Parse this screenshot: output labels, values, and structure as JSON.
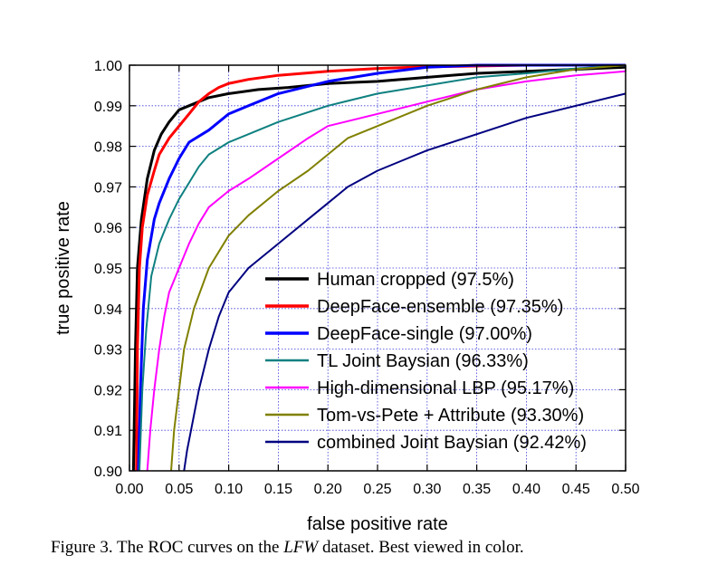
{
  "caption": {
    "prefix": "Figure 3.",
    "text_before": "The ROC curves on the",
    "dataset": "LFW",
    "text_after": "dataset. Best viewed in color."
  },
  "chart_data": {
    "type": "line",
    "title": "",
    "xlabel": "false positive rate",
    "ylabel": "true positive rate",
    "xlim": [
      0.0,
      0.5
    ],
    "ylim": [
      0.9,
      1.0
    ],
    "xticks": [
      "0.00",
      "0.05",
      "0.10",
      "0.15",
      "0.20",
      "0.25",
      "0.30",
      "0.35",
      "0.40",
      "0.45",
      "0.50"
    ],
    "yticks": [
      "0.90",
      "0.91",
      "0.92",
      "0.93",
      "0.94",
      "0.95",
      "0.96",
      "0.97",
      "0.98",
      "0.99",
      "1.00"
    ],
    "grid": true,
    "legend_position": "bottom-right",
    "series": [
      {
        "name": "Human cropped (97.5%)",
        "color": "#000000",
        "width": 3,
        "points": [
          [
            0.004,
            0.9
          ],
          [
            0.006,
            0.93
          ],
          [
            0.008,
            0.95
          ],
          [
            0.012,
            0.962
          ],
          [
            0.018,
            0.972
          ],
          [
            0.025,
            0.979
          ],
          [
            0.032,
            0.983
          ],
          [
            0.04,
            0.986
          ],
          [
            0.05,
            0.989
          ],
          [
            0.06,
            0.99
          ],
          [
            0.08,
            0.992
          ],
          [
            0.1,
            0.993
          ],
          [
            0.13,
            0.994
          ],
          [
            0.16,
            0.9945
          ],
          [
            0.2,
            0.9955
          ],
          [
            0.25,
            0.996
          ],
          [
            0.3,
            0.997
          ],
          [
            0.35,
            0.998
          ],
          [
            0.4,
            0.9985
          ],
          [
            0.45,
            0.999
          ],
          [
            0.5,
            0.9995
          ]
        ]
      },
      {
        "name": "DeepFace-ensemble (97.35%)",
        "color": "#ff0000",
        "width": 3,
        "points": [
          [
            0.007,
            0.9
          ],
          [
            0.008,
            0.93
          ],
          [
            0.01,
            0.95
          ],
          [
            0.013,
            0.96
          ],
          [
            0.018,
            0.968
          ],
          [
            0.025,
            0.974
          ],
          [
            0.03,
            0.978
          ],
          [
            0.04,
            0.982
          ],
          [
            0.05,
            0.985
          ],
          [
            0.06,
            0.988
          ],
          [
            0.07,
            0.991
          ],
          [
            0.08,
            0.993
          ],
          [
            0.09,
            0.9945
          ],
          [
            0.1,
            0.9955
          ],
          [
            0.12,
            0.9965
          ],
          [
            0.15,
            0.9975
          ],
          [
            0.2,
            0.9985
          ],
          [
            0.25,
            0.9992
          ],
          [
            0.3,
            0.9996
          ],
          [
            0.4,
            1.0
          ],
          [
            0.5,
            1.0
          ]
        ]
      },
      {
        "name": "DeepFace-single (97.00%)",
        "color": "#0000ff",
        "width": 3,
        "points": [
          [
            0.009,
            0.9
          ],
          [
            0.011,
            0.92
          ],
          [
            0.014,
            0.94
          ],
          [
            0.018,
            0.952
          ],
          [
            0.025,
            0.962
          ],
          [
            0.03,
            0.966
          ],
          [
            0.04,
            0.972
          ],
          [
            0.05,
            0.977
          ],
          [
            0.06,
            0.981
          ],
          [
            0.08,
            0.984
          ],
          [
            0.1,
            0.988
          ],
          [
            0.12,
            0.99
          ],
          [
            0.15,
            0.993
          ],
          [
            0.2,
            0.996
          ],
          [
            0.25,
            0.998
          ],
          [
            0.3,
            0.9995
          ],
          [
            0.35,
            1.0
          ],
          [
            0.5,
            1.0
          ]
        ]
      },
      {
        "name": "TL Joint Baysian (96.33%)",
        "color": "#0f8080",
        "width": 2,
        "points": [
          [
            0.01,
            0.9
          ],
          [
            0.013,
            0.92
          ],
          [
            0.017,
            0.935
          ],
          [
            0.022,
            0.948
          ],
          [
            0.03,
            0.956
          ],
          [
            0.04,
            0.962
          ],
          [
            0.05,
            0.967
          ],
          [
            0.06,
            0.971
          ],
          [
            0.07,
            0.975
          ],
          [
            0.08,
            0.978
          ],
          [
            0.1,
            0.981
          ],
          [
            0.12,
            0.983
          ],
          [
            0.15,
            0.986
          ],
          [
            0.2,
            0.99
          ],
          [
            0.25,
            0.993
          ],
          [
            0.3,
            0.995
          ],
          [
            0.35,
            0.997
          ],
          [
            0.4,
            0.998
          ],
          [
            0.45,
            0.9992
          ],
          [
            0.5,
            1.0
          ]
        ]
      },
      {
        "name": "High-dimensional LBP (95.17%)",
        "color": "#ff00ff",
        "width": 2,
        "points": [
          [
            0.018,
            0.9
          ],
          [
            0.021,
            0.91
          ],
          [
            0.025,
            0.92
          ],
          [
            0.03,
            0.93
          ],
          [
            0.035,
            0.938
          ],
          [
            0.04,
            0.944
          ],
          [
            0.05,
            0.95
          ],
          [
            0.06,
            0.956
          ],
          [
            0.07,
            0.961
          ],
          [
            0.08,
            0.965
          ],
          [
            0.1,
            0.969
          ],
          [
            0.12,
            0.972
          ],
          [
            0.15,
            0.977
          ],
          [
            0.18,
            0.982
          ],
          [
            0.2,
            0.985
          ],
          [
            0.25,
            0.988
          ],
          [
            0.3,
            0.991
          ],
          [
            0.35,
            0.994
          ],
          [
            0.4,
            0.996
          ],
          [
            0.45,
            0.9975
          ],
          [
            0.5,
            0.9985
          ]
        ]
      },
      {
        "name": "Tom-vs-Pete + Attribute (93.30%)",
        "color": "#808000",
        "width": 2,
        "points": [
          [
            0.042,
            0.9
          ],
          [
            0.045,
            0.91
          ],
          [
            0.05,
            0.92
          ],
          [
            0.055,
            0.93
          ],
          [
            0.065,
            0.94
          ],
          [
            0.08,
            0.95
          ],
          [
            0.1,
            0.958
          ],
          [
            0.12,
            0.963
          ],
          [
            0.15,
            0.969
          ],
          [
            0.18,
            0.974
          ],
          [
            0.2,
            0.978
          ],
          [
            0.22,
            0.982
          ],
          [
            0.25,
            0.985
          ],
          [
            0.3,
            0.99
          ],
          [
            0.35,
            0.994
          ],
          [
            0.4,
            0.997
          ],
          [
            0.45,
            0.999
          ],
          [
            0.5,
            1.0
          ]
        ]
      },
      {
        "name": "combined Joint Baysian (92.42%)",
        "color": "#000080",
        "width": 2,
        "points": [
          [
            0.055,
            0.9
          ],
          [
            0.058,
            0.905
          ],
          [
            0.062,
            0.91
          ],
          [
            0.07,
            0.92
          ],
          [
            0.08,
            0.93
          ],
          [
            0.09,
            0.938
          ],
          [
            0.1,
            0.944
          ],
          [
            0.12,
            0.95
          ],
          [
            0.15,
            0.956
          ],
          [
            0.18,
            0.962
          ],
          [
            0.2,
            0.966
          ],
          [
            0.22,
            0.97
          ],
          [
            0.25,
            0.974
          ],
          [
            0.28,
            0.977
          ],
          [
            0.3,
            0.979
          ],
          [
            0.35,
            0.983
          ],
          [
            0.4,
            0.987
          ],
          [
            0.45,
            0.99
          ],
          [
            0.5,
            0.993
          ]
        ]
      }
    ]
  }
}
